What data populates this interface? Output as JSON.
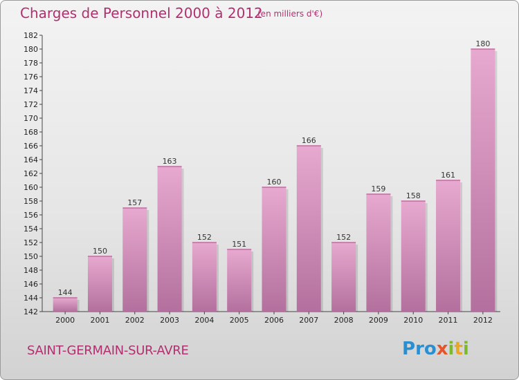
{
  "title": "Charges de Personnel 2000 à 2012",
  "subtitle": "(en milliers d'€)",
  "commune": "SAINT-GERMAIN-SUR-AVRE",
  "logo": {
    "letters": [
      "P",
      "r",
      "o",
      "x",
      "i",
      "t",
      "i"
    ],
    "colors": [
      "#2a8fd0",
      "#2a8fd0",
      "#2a8fd0",
      "#e5542b",
      "#7bbb2a",
      "#e9a81f",
      "#7bbb2a"
    ]
  },
  "colors": {
    "bar_top": "#e7a9cf",
    "bar_bottom": "#b3709e",
    "accent": "#b0306f"
  },
  "chart_data": {
    "type": "bar",
    "categories": [
      "2000",
      "2001",
      "2002",
      "2003",
      "2004",
      "2005",
      "2006",
      "2007",
      "2008",
      "2009",
      "2010",
      "2011",
      "2012"
    ],
    "values": [
      144,
      150,
      157,
      163,
      152,
      151,
      160,
      166,
      152,
      159,
      158,
      161,
      180
    ],
    "value_labels": [
      "144",
      "150",
      "157",
      "163",
      "152",
      "151",
      "160",
      "166",
      "152",
      "159",
      "158",
      "161",
      "180"
    ],
    "ylim": [
      142,
      182
    ],
    "ytick_labels": [
      "142",
      "144",
      "146",
      "148",
      "150",
      "152",
      "154",
      "156",
      "158",
      "160",
      "162",
      "164",
      "166",
      "168",
      "170",
      "172",
      "174",
      "176",
      "178",
      "180",
      "182"
    ],
    "grid": false,
    "xlabel": "",
    "ylabel": ""
  }
}
